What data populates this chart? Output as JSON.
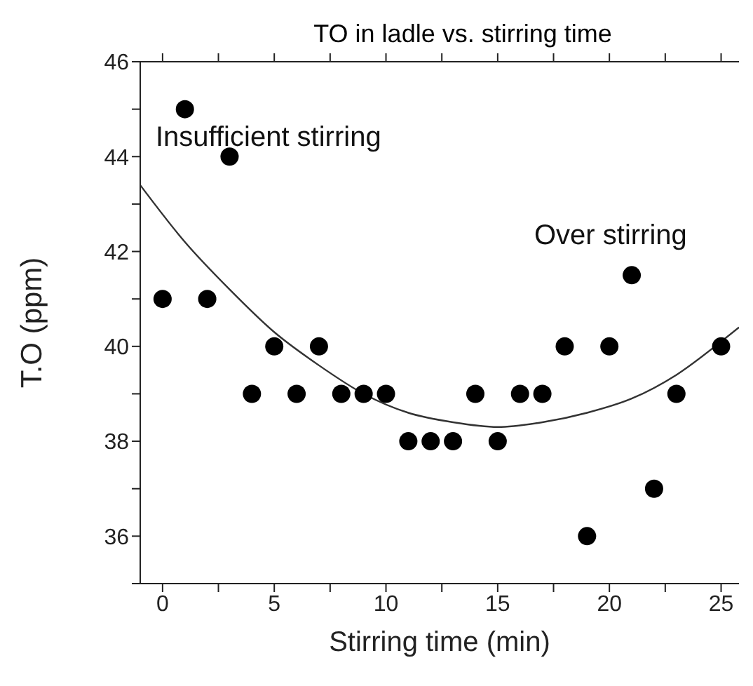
{
  "chart_data": {
    "type": "scatter",
    "title": "TO in ladle vs. stirring time",
    "xlabel": "Stirring time (min)",
    "ylabel": "T.O  (ppm)",
    "xlim": [
      -1,
      25.8
    ],
    "xticks": [
      0,
      {
        "value": 2.5,
        "label": null
      },
      5,
      {
        "value": 7.5,
        "label": null
      },
      10,
      {
        "value": 12.5,
        "label": null
      },
      15,
      {
        "value": 17.5,
        "label": null
      },
      20,
      {
        "value": 22.5,
        "label": null
      },
      25
    ],
    "ylim": [
      35,
      46
    ],
    "yticks": [
      {
        "value": 35,
        "label": null
      },
      36,
      {
        "value": 37,
        "label": null
      },
      38,
      {
        "value": 39,
        "label": null
      },
      40,
      {
        "value": 41,
        "label": null
      },
      42,
      {
        "value": 43,
        "label": null
      },
      44,
      {
        "value": 45,
        "label": null
      },
      46
    ],
    "grid": false,
    "legend": false,
    "marker": "circle",
    "series": [
      {
        "color": "#000000",
        "x": [
          0,
          1,
          2,
          3,
          4,
          5,
          6,
          7,
          8,
          9,
          10,
          11,
          12,
          13,
          14,
          15,
          16,
          17,
          18,
          19,
          20,
          21,
          22,
          23,
          25
        ],
        "values": [
          41,
          45,
          41,
          44,
          39,
          40,
          39,
          40,
          39,
          39,
          39,
          38,
          38,
          38,
          39,
          38,
          39,
          39,
          40,
          36,
          40,
          41.5,
          37,
          39,
          40
        ]
      },
      {
        "type": "line",
        "color": "#333333",
        "marker": "none",
        "x": [
          -1,
          1,
          3,
          5,
          7,
          9,
          11,
          13,
          15,
          17,
          19,
          21,
          23,
          25,
          25.8
        ],
        "values": [
          43.4,
          42.2,
          41.2,
          40.3,
          39.6,
          39.0,
          38.6,
          38.4,
          38.3,
          38.4,
          38.6,
          38.9,
          39.4,
          40.1,
          40.4
        ]
      }
    ],
    "annotations": [
      "Insufficient stirring",
      "Over stirring"
    ]
  }
}
